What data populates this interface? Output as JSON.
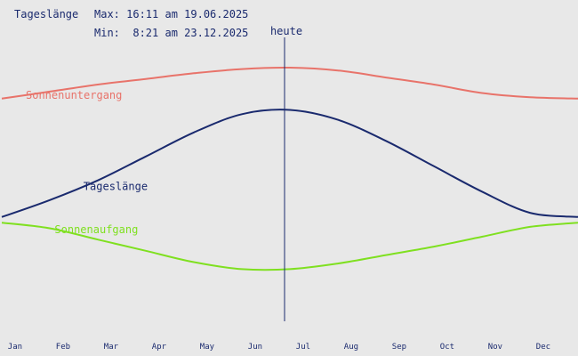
{
  "header": {
    "title": "Tageslänge",
    "max_line": "Max: 16:11 am 19.06.2025",
    "min_line": "Min:  8:21 am 23.12.2025"
  },
  "chart_data": {
    "type": "line",
    "x_axis_ticks": [
      "Jan",
      "Feb",
      "Mar",
      "Apr",
      "May",
      "Jun",
      "Jul",
      "Aug",
      "Sep",
      "Oct",
      "Nov",
      "Dec"
    ],
    "today_marker_label": "heute",
    "today_month_position": 6.0,
    "ylim_hours": [
      0,
      24
    ],
    "series": [
      {
        "name": "Sonnenuntergang",
        "color": "#e8736a",
        "values": [
          17.0,
          17.5,
          18.0,
          18.4,
          18.8,
          19.1,
          19.2,
          19.0,
          18.5,
          18.0,
          17.4,
          17.1,
          17.0
        ],
        "label_month_position": 0.5
      },
      {
        "name": "Tageslänge",
        "color": "#1a2a6e",
        "values": [
          8.6,
          9.8,
          11.2,
          12.9,
          14.6,
          15.9,
          16.2,
          15.5,
          14.0,
          12.2,
          10.4,
          8.9,
          8.6
        ],
        "label_month_position": 1.7
      },
      {
        "name": "Sonnenaufgang",
        "color": "#7fe020",
        "values": [
          8.2,
          7.8,
          7.0,
          6.2,
          5.4,
          4.9,
          4.9,
          5.3,
          5.9,
          6.5,
          7.2,
          7.9,
          8.2
        ],
        "label_month_position": 1.1
      }
    ]
  }
}
